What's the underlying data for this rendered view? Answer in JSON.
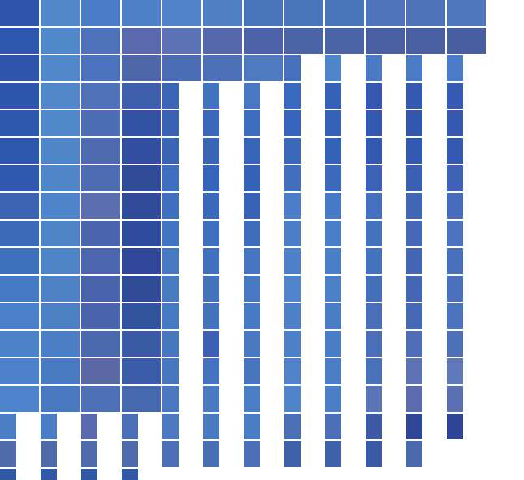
{
  "palette": {
    "deep": "#2e55ab",
    "light": "#5188cc",
    "mid": "#4a76c0",
    "purple": "#5a6aae",
    "dark": "#2f4a96",
    "slate": "#4b66a8",
    "bright": "#3d6fc6",
    "gap": "#ffffff"
  },
  "grid": {
    "columns": 12,
    "rows": 17
  },
  "full_rows": [
    {
      "row": 0,
      "colors": [
        "#2e55ab",
        "#5188cc",
        "#4a7dc6",
        "#4e80c7",
        "#4f82c8",
        "#4f7fc3",
        "#4a74bb",
        "#4a74bb",
        "#4a74ba",
        "#4e74bb",
        "#4d73b9",
        "#4e76bd"
      ]
    },
    {
      "row": 1,
      "colors": [
        "#2d56ac",
        "#5088cc",
        "#4c72bc",
        "#5a69ae",
        "#5c72b6",
        "#5568ab",
        "#4b62a8",
        "#4a62a6",
        "#4a62a6",
        "#4a5fa3",
        "#495fa4",
        "#475ea3"
      ]
    }
  ],
  "row2": {
    "full_until": 7,
    "colors": [
      "#2e55ab",
      "#5088cb",
      "#4b73bd",
      "#4e66aa",
      "#4b6db6",
      "#4e70b9",
      "#4f7ac0"
    ]
  },
  "columns": [
    {
      "col": 0,
      "colors": [
        "#2e55ab",
        "#2d55ab",
        "#2e56ad",
        "#2d56ac",
        "#2f58ae",
        "#3c62b2",
        "#3c6ab8",
        "#3c70bb",
        "#4479c4",
        "#4a7fc9",
        "#4b82c8",
        "#4c82c9",
        "#4d83ca",
        "#4b7ec5",
        "#4f6aa8",
        "#3158a5"
      ]
    },
    {
      "col": 1,
      "colors": [
        "#5188cc",
        "#5188cc",
        "#5088cc",
        "#4f86ca",
        "#4f86ca",
        "#4d84ca",
        "#4d84c8",
        "#4d83c7",
        "#4d82c7",
        "#4b80c4",
        "#4b7ec4",
        "#497bc2",
        "#4879c0",
        "#4a7cc3",
        "#4f6aa8",
        "#3158a5"
      ]
    },
    {
      "col": 2,
      "colors": [
        "#4a72bb",
        "#4e71b7",
        "#4c6cb3",
        "#4e6aaf",
        "#4d6cb2",
        "#5a6dae",
        "#4b65ac",
        "#4b66ae",
        "#4963ab",
        "#4a64ac",
        "#4a6aad",
        "#5a68a6",
        "#4e70b6",
        "#5a6aae",
        "#4f6aa8",
        "#3158a5"
      ]
    },
    {
      "col": 3,
      "colors": [
        "#4a62a6",
        "#3f5eac",
        "#3452a4",
        "#324f9f",
        "#2f4a96",
        "#2f4a99",
        "#2e4b9b",
        "#30479a",
        "#2f4a97",
        "#34539f",
        "#3a5aa6",
        "#3a5ba8",
        "#4568af",
        "#4b6eb6",
        "#4f6aa8",
        "#3158a5"
      ]
    }
  ],
  "stripes": [
    {
      "col": 4,
      "colors": [
        "#3b66b8",
        "#3a62b3",
        "#3a65b5",
        "#3d6ec0",
        "#3f6fbf",
        "#4275c1",
        "#4778c2",
        "#477bc2",
        "#4479c3",
        "#4677bf",
        "#4777bf",
        "#4a78c0",
        "#4c79c1",
        "#4b6eb6",
        "#3860ab"
      ]
    },
    {
      "col": 5,
      "colors": [
        "#4173c1",
        "#3b68ba",
        "#3a65b5",
        "#3465bb",
        "#3a68ba",
        "#3e6ebe",
        "#4171be",
        "#4572bc",
        "#4572bc",
        "#3d60b4",
        "#4573bf",
        "#4a7ac3",
        "#4a79c0",
        "#486fb3",
        "#3658a4"
      ]
    },
    {
      "col": 6,
      "colors": [
        "#4877c4",
        "#3d6dbf",
        "#3864b8",
        "#3562b6",
        "#3762b5",
        "#3f6cbb",
        "#4674c1",
        "#4878c2",
        "#477ac2",
        "#4a78c0",
        "#4876be",
        "#4c7ec5",
        "#4b7dc4",
        "#4b6eb6",
        "#3657a2"
      ]
    },
    {
      "col": 7,
      "colors": [
        "#4671bd",
        "#386ac0",
        "#3564bd",
        "#3a68ba",
        "#4070bd",
        "#4a7ec9",
        "#4a7fc8",
        "#4c80c9",
        "#4f85cc",
        "#4c81c8",
        "#4c80c7",
        "#4e83ca",
        "#4d84ca",
        "#496fb4",
        "#4060a9"
      ]
    },
    {
      "col": 8,
      "colors": [
        "#4e85cb",
        "#3560b8",
        "#3560b8",
        "#3462b8",
        "#3b69bb",
        "#4679c6",
        "#4a7ec6",
        "#4a7fc7",
        "#4b7fc6",
        "#4a7dc4",
        "#4a7dc3",
        "#4b7ec4",
        "#4b7ec5",
        "#4b6eb6",
        "#4060a9"
      ]
    },
    {
      "col": 9,
      "colors": [
        "#4b79c4",
        "#3458b0",
        "#3359b1",
        "#3359b1",
        "#3b62b6",
        "#4470bd",
        "#4572bd",
        "#4472bc",
        "#4470bb",
        "#4a6fb8",
        "#4a6fb8",
        "#4a72bb",
        "#5a74b6",
        "#3d59a4",
        "#3b5aa5"
      ]
    },
    {
      "col": 10,
      "colors": [
        "#4b7bc6",
        "#3558b0",
        "#3357af",
        "#3358b0",
        "#3b5fb3",
        "#4166b6",
        "#4468b5",
        "#4366b4",
        "#4467b5",
        "#4468b4",
        "#4f6db6",
        "#5e73b4",
        "#5c6ab0",
        "#2f4595",
        "#4a6aad"
      ]
    },
    {
      "col": 11,
      "colors": [
        "#4b7cc7",
        "#3659b3",
        "#3458b0",
        "#3458b0",
        "#3e62b6",
        "#466bba",
        "#4a72bd",
        "#486fba",
        "#4a72bc",
        "#4b73bb",
        "#4e70b8",
        "#5f78b8",
        "#5a70b2",
        "#2d4594"
      ]
    }
  ]
}
